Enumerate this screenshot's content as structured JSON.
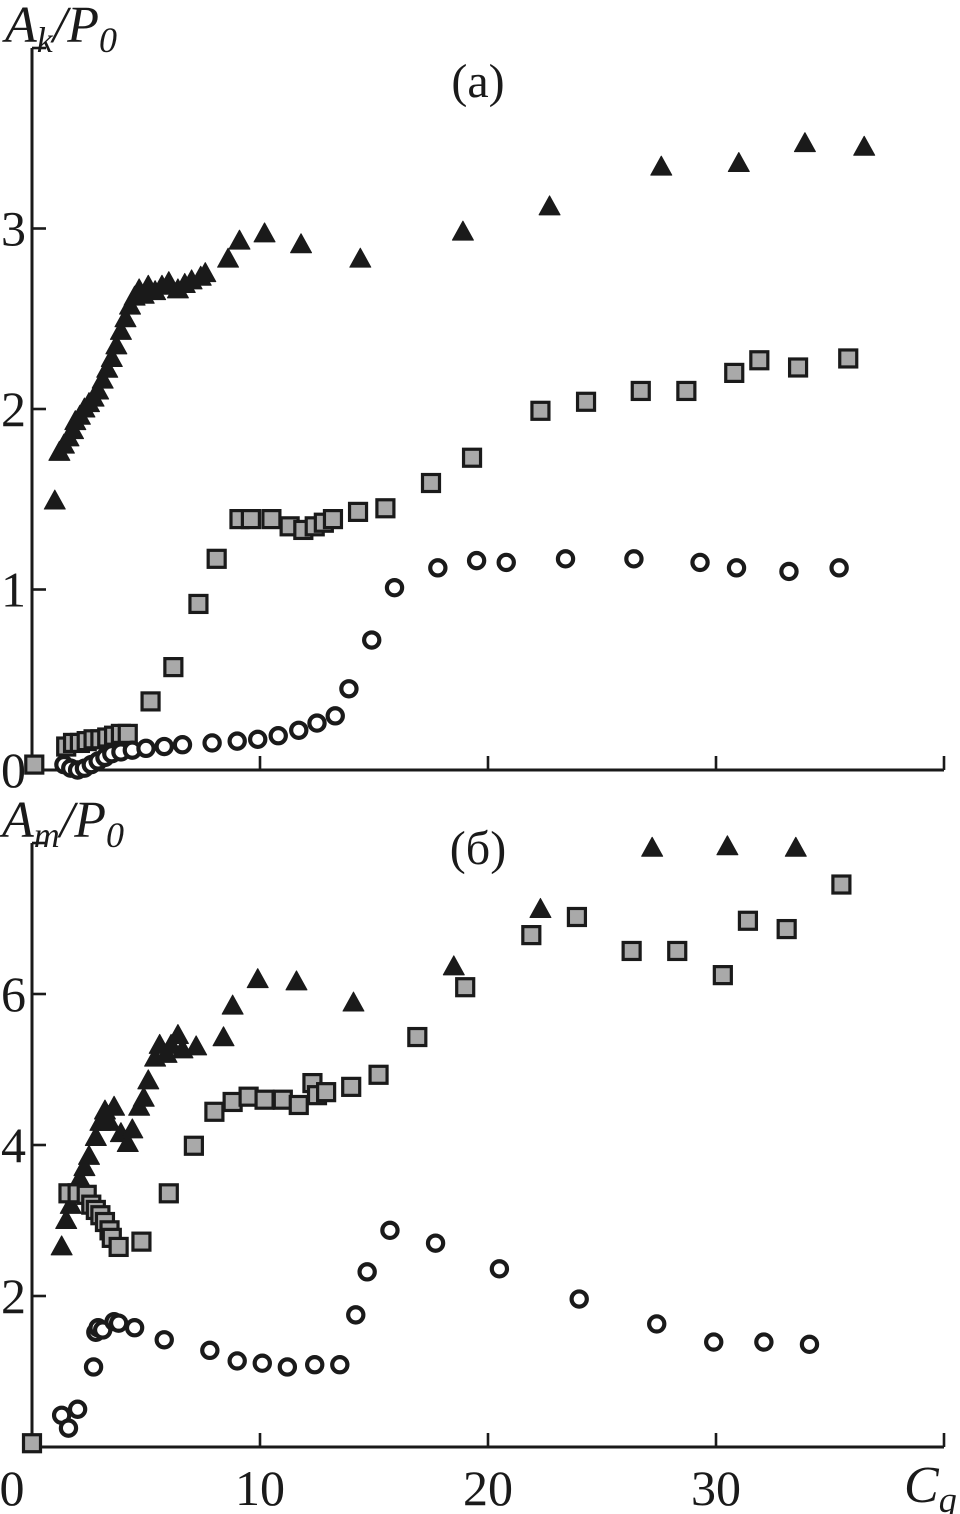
{
  "figure": {
    "background": "#ffffff",
    "ink_color": "#1a1a1a",
    "square_fill": "#a9a9a9",
    "circle_fill": "#ffffff"
  },
  "chart_data": [
    {
      "id": "a",
      "type": "scatter",
      "panel_label": "(a)",
      "y_axis_label": {
        "base": "A",
        "sub": "k",
        "rest": "/P",
        "rest_sub": "0"
      },
      "x_axis_label": null,
      "xlim": [
        0,
        40
      ],
      "ylim": [
        0,
        4
      ],
      "grid": false,
      "legend": "none",
      "x_ticks": [
        10,
        20,
        30
      ],
      "x_tick_labels": [],
      "y_tick_labels": [
        {
          "value": 1,
          "label": "1"
        },
        {
          "value": 2,
          "label": "2"
        },
        {
          "value": 3,
          "label": "3"
        }
      ],
      "origin_label": "0",
      "origin_label_position": "left",
      "series": [
        {
          "name": "filled-triangles",
          "marker": "triangle",
          "points": [
            [
              1.0,
              1.49
            ],
            [
              1.2,
              1.76
            ],
            [
              1.4,
              1.8
            ],
            [
              1.6,
              1.84
            ],
            [
              1.8,
              1.88
            ],
            [
              1.9,
              1.93
            ],
            [
              2.1,
              1.96
            ],
            [
              2.3,
              2.0
            ],
            [
              2.5,
              2.03
            ],
            [
              2.7,
              2.06
            ],
            [
              2.9,
              2.1
            ],
            [
              3.1,
              2.16
            ],
            [
              3.3,
              2.22
            ],
            [
              3.5,
              2.28
            ],
            [
              3.7,
              2.35
            ],
            [
              3.9,
              2.43
            ],
            [
              4.1,
              2.5
            ],
            [
              4.3,
              2.57
            ],
            [
              4.5,
              2.62
            ],
            [
              4.7,
              2.66
            ],
            [
              4.9,
              2.63
            ],
            [
              5.1,
              2.68
            ],
            [
              5.4,
              2.65
            ],
            [
              5.7,
              2.68
            ],
            [
              6.0,
              2.7
            ],
            [
              6.4,
              2.66
            ],
            [
              6.7,
              2.69
            ],
            [
              7.0,
              2.71
            ],
            [
              7.4,
              2.73
            ],
            [
              7.6,
              2.75
            ],
            [
              8.6,
              2.83
            ],
            [
              9.1,
              2.93
            ],
            [
              10.2,
              2.97
            ],
            [
              11.8,
              2.91
            ],
            [
              14.4,
              2.83
            ],
            [
              18.9,
              2.98
            ],
            [
              22.7,
              3.12
            ],
            [
              27.6,
              3.34
            ],
            [
              31.0,
              3.36
            ],
            [
              33.9,
              3.47
            ],
            [
              36.5,
              3.45
            ]
          ]
        },
        {
          "name": "gray-squares",
          "marker": "square",
          "points": [
            [
              0.1,
              0.03
            ],
            [
              1.5,
              0.13
            ],
            [
              1.8,
              0.15
            ],
            [
              2.1,
              0.15
            ],
            [
              2.4,
              0.16
            ],
            [
              2.7,
              0.17
            ],
            [
              3.0,
              0.17
            ],
            [
              3.3,
              0.18
            ],
            [
              3.6,
              0.19
            ],
            [
              3.9,
              0.2
            ],
            [
              4.2,
              0.2
            ],
            [
              5.2,
              0.38
            ],
            [
              6.2,
              0.57
            ],
            [
              7.3,
              0.92
            ],
            [
              8.1,
              1.17
            ],
            [
              9.1,
              1.39
            ],
            [
              9.6,
              1.39
            ],
            [
              10.5,
              1.39
            ],
            [
              11.3,
              1.35
            ],
            [
              11.9,
              1.33
            ],
            [
              12.4,
              1.35
            ],
            [
              12.8,
              1.37
            ],
            [
              13.2,
              1.39
            ],
            [
              14.3,
              1.43
            ],
            [
              15.5,
              1.45
            ],
            [
              17.5,
              1.59
            ],
            [
              19.3,
              1.73
            ],
            [
              22.3,
              1.99
            ],
            [
              24.3,
              2.04
            ],
            [
              26.7,
              2.1
            ],
            [
              28.7,
              2.1
            ],
            [
              30.8,
              2.2
            ],
            [
              31.9,
              2.27
            ],
            [
              33.6,
              2.23
            ],
            [
              35.8,
              2.28
            ]
          ]
        },
        {
          "name": "open-circles",
          "marker": "circle",
          "points": [
            [
              1.4,
              0.03
            ],
            [
              1.7,
              0.01
            ],
            [
              2.0,
              0.0
            ],
            [
              2.3,
              0.01
            ],
            [
              2.6,
              0.03
            ],
            [
              2.9,
              0.05
            ],
            [
              3.2,
              0.07
            ],
            [
              3.5,
              0.09
            ],
            [
              3.9,
              0.1
            ],
            [
              4.4,
              0.11
            ],
            [
              5.0,
              0.12
            ],
            [
              5.8,
              0.13
            ],
            [
              6.6,
              0.14
            ],
            [
              7.9,
              0.15
            ],
            [
              9.0,
              0.16
            ],
            [
              9.9,
              0.17
            ],
            [
              10.8,
              0.19
            ],
            [
              11.7,
              0.22
            ],
            [
              12.5,
              0.26
            ],
            [
              13.3,
              0.3
            ],
            [
              13.9,
              0.45
            ],
            [
              14.9,
              0.72
            ],
            [
              15.9,
              1.01
            ],
            [
              17.8,
              1.12
            ],
            [
              19.5,
              1.16
            ],
            [
              20.8,
              1.15
            ],
            [
              23.4,
              1.17
            ],
            [
              26.4,
              1.17
            ],
            [
              29.3,
              1.15
            ],
            [
              30.9,
              1.12
            ],
            [
              33.2,
              1.1
            ],
            [
              35.4,
              1.12
            ]
          ]
        }
      ]
    },
    {
      "id": "b",
      "type": "scatter",
      "panel_label": "(б)",
      "y_axis_label": {
        "base": "A",
        "sub": "m",
        "rest": "/P",
        "rest_sub": "0"
      },
      "x_axis_label": {
        "base": "C",
        "sub": "q"
      },
      "xlim": [
        0,
        40
      ],
      "ylim": [
        0,
        8
      ],
      "grid": false,
      "legend": "none",
      "x_ticks": [
        10,
        20,
        30
      ],
      "x_tick_labels": [
        {
          "value": 10,
          "label": "10"
        },
        {
          "value": 20,
          "label": "20"
        },
        {
          "value": 30,
          "label": "30"
        }
      ],
      "y_tick_labels": [
        {
          "value": 2,
          "label": "2"
        },
        {
          "value": 4,
          "label": "4"
        },
        {
          "value": 6,
          "label": "6"
        }
      ],
      "origin_label": "0",
      "origin_label_position": "below",
      "series": [
        {
          "name": "filled-triangles",
          "marker": "triangle",
          "points": [
            [
              1.3,
              2.65
            ],
            [
              1.5,
              3.0
            ],
            [
              1.7,
              3.2
            ],
            [
              1.9,
              3.4
            ],
            [
              2.1,
              3.55
            ],
            [
              2.3,
              3.7
            ],
            [
              2.5,
              3.85
            ],
            [
              2.8,
              4.1
            ],
            [
              3.0,
              4.3
            ],
            [
              3.2,
              4.45
            ],
            [
              3.4,
              4.3
            ],
            [
              3.6,
              4.5
            ],
            [
              3.9,
              4.15
            ],
            [
              4.2,
              4.02
            ],
            [
              4.4,
              4.2
            ],
            [
              4.7,
              4.5
            ],
            [
              4.9,
              4.62
            ],
            [
              5.1,
              4.85
            ],
            [
              5.4,
              5.15
            ],
            [
              5.6,
              5.32
            ],
            [
              5.9,
              5.2
            ],
            [
              6.1,
              5.32
            ],
            [
              6.4,
              5.45
            ],
            [
              6.6,
              5.26
            ],
            [
              7.2,
              5.3
            ],
            [
              8.4,
              5.42
            ],
            [
              8.8,
              5.84
            ],
            [
              9.9,
              6.19
            ],
            [
              11.6,
              6.16
            ],
            [
              14.1,
              5.88
            ],
            [
              18.5,
              6.36
            ],
            [
              22.3,
              7.12
            ],
            [
              27.2,
              7.93
            ],
            [
              30.5,
              7.95
            ],
            [
              33.5,
              7.93
            ]
          ]
        },
        {
          "name": "gray-squares",
          "marker": "square",
          "points": [
            [
              0.0,
              0.05
            ],
            [
              1.6,
              3.36
            ],
            [
              2.0,
              3.36
            ],
            [
              2.4,
              3.34
            ],
            [
              2.6,
              3.21
            ],
            [
              2.8,
              3.14
            ],
            [
              3.0,
              3.07
            ],
            [
              3.2,
              2.98
            ],
            [
              3.4,
              2.87
            ],
            [
              3.5,
              2.77
            ],
            [
              3.8,
              2.65
            ],
            [
              4.8,
              2.72
            ],
            [
              6.0,
              3.36
            ],
            [
              7.1,
              3.99
            ],
            [
              8.0,
              4.44
            ],
            [
              8.8,
              4.57
            ],
            [
              9.5,
              4.64
            ],
            [
              10.2,
              4.6
            ],
            [
              11.0,
              4.6
            ],
            [
              11.7,
              4.53
            ],
            [
              12.3,
              4.82
            ],
            [
              12.5,
              4.66
            ],
            [
              12.9,
              4.7
            ],
            [
              14.0,
              4.77
            ],
            [
              15.2,
              4.93
            ],
            [
              16.9,
              5.43
            ],
            [
              19.0,
              6.09
            ],
            [
              21.9,
              6.78
            ],
            [
              23.9,
              7.02
            ],
            [
              26.3,
              6.57
            ],
            [
              28.3,
              6.57
            ],
            [
              30.3,
              6.25
            ],
            [
              31.4,
              6.97
            ],
            [
              33.1,
              6.86
            ],
            [
              35.5,
              7.45
            ]
          ]
        },
        {
          "name": "open-circles",
          "marker": "circle",
          "points": [
            [
              1.3,
              0.42
            ],
            [
              1.6,
              0.25
            ],
            [
              2.0,
              0.5
            ],
            [
              2.7,
              1.06
            ],
            [
              2.8,
              1.52
            ],
            [
              2.9,
              1.58
            ],
            [
              3.1,
              1.55
            ],
            [
              3.6,
              1.66
            ],
            [
              3.8,
              1.64
            ],
            [
              4.5,
              1.58
            ],
            [
              5.8,
              1.42
            ],
            [
              7.8,
              1.28
            ],
            [
              9.0,
              1.14
            ],
            [
              10.1,
              1.11
            ],
            [
              11.2,
              1.06
            ],
            [
              12.4,
              1.09
            ],
            [
              13.5,
              1.09
            ],
            [
              14.2,
              1.75
            ],
            [
              14.7,
              2.32
            ],
            [
              15.7,
              2.87
            ],
            [
              17.7,
              2.7
            ],
            [
              20.5,
              2.36
            ],
            [
              24.0,
              1.96
            ],
            [
              27.4,
              1.63
            ],
            [
              29.9,
              1.39
            ],
            [
              32.1,
              1.39
            ],
            [
              34.1,
              1.36
            ]
          ]
        }
      ]
    }
  ]
}
